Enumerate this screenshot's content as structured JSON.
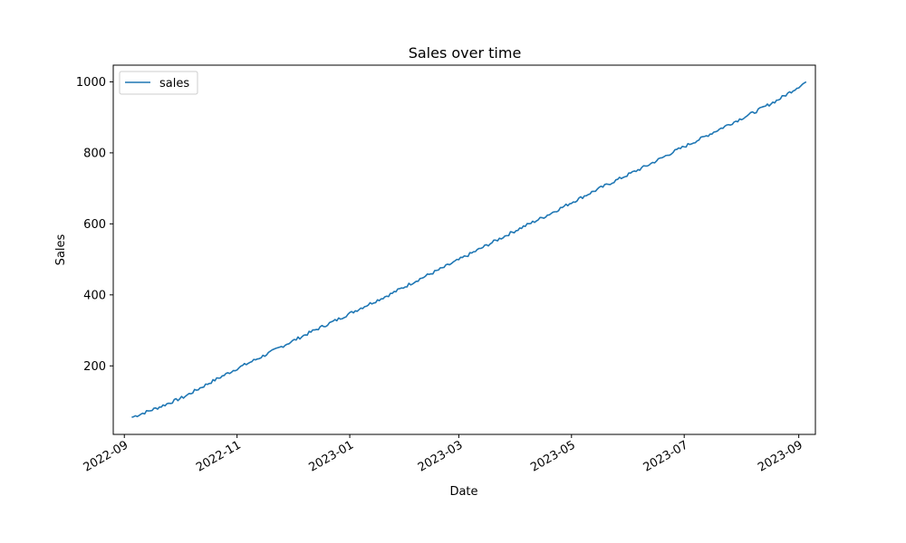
{
  "chart_data": {
    "type": "line",
    "title": "Sales over time",
    "xlabel": "Date",
    "ylabel": "Sales",
    "x_ticks": [
      "2022-09",
      "2022-11",
      "2023-01",
      "2023-03",
      "2023-05",
      "2023-07",
      "2023-09"
    ],
    "y_ticks": [
      200,
      400,
      600,
      800,
      1000
    ],
    "xlim": [
      "2022-08-26",
      "2023-09-10"
    ],
    "ylim": [
      7,
      1047
    ],
    "x_start": "2022-09-05",
    "x_end": "2023-09-05",
    "legend_position": "top-left",
    "grid": false,
    "color": "#1f77b4",
    "series": [
      {
        "name": "sales",
        "points": [
          [
            "2022-09-05",
            55
          ],
          [
            "2022-09-19",
            82
          ],
          [
            "2022-10-03",
            112
          ],
          [
            "2022-10-17",
            152
          ],
          [
            "2022-10-31",
            190
          ],
          [
            "2022-11-14",
            225
          ],
          [
            "2022-11-28",
            262
          ],
          [
            "2022-12-12",
            298
          ],
          [
            "2022-12-26",
            332
          ],
          [
            "2023-01-09",
            368
          ],
          [
            "2023-01-23",
            402
          ],
          [
            "2023-02-06",
            440
          ],
          [
            "2023-02-20",
            475
          ],
          [
            "2023-03-06",
            512
          ],
          [
            "2023-03-20",
            550
          ],
          [
            "2023-04-03",
            587
          ],
          [
            "2023-04-17",
            622
          ],
          [
            "2023-05-01",
            660
          ],
          [
            "2023-05-15",
            697
          ],
          [
            "2023-05-29",
            732
          ],
          [
            "2023-06-12",
            767
          ],
          [
            "2023-06-26",
            805
          ],
          [
            "2023-07-10",
            840
          ],
          [
            "2023-07-24",
            877
          ],
          [
            "2023-08-07",
            912
          ],
          [
            "2023-08-21",
            950
          ],
          [
            "2023-09-05",
            1000
          ]
        ]
      }
    ]
  }
}
